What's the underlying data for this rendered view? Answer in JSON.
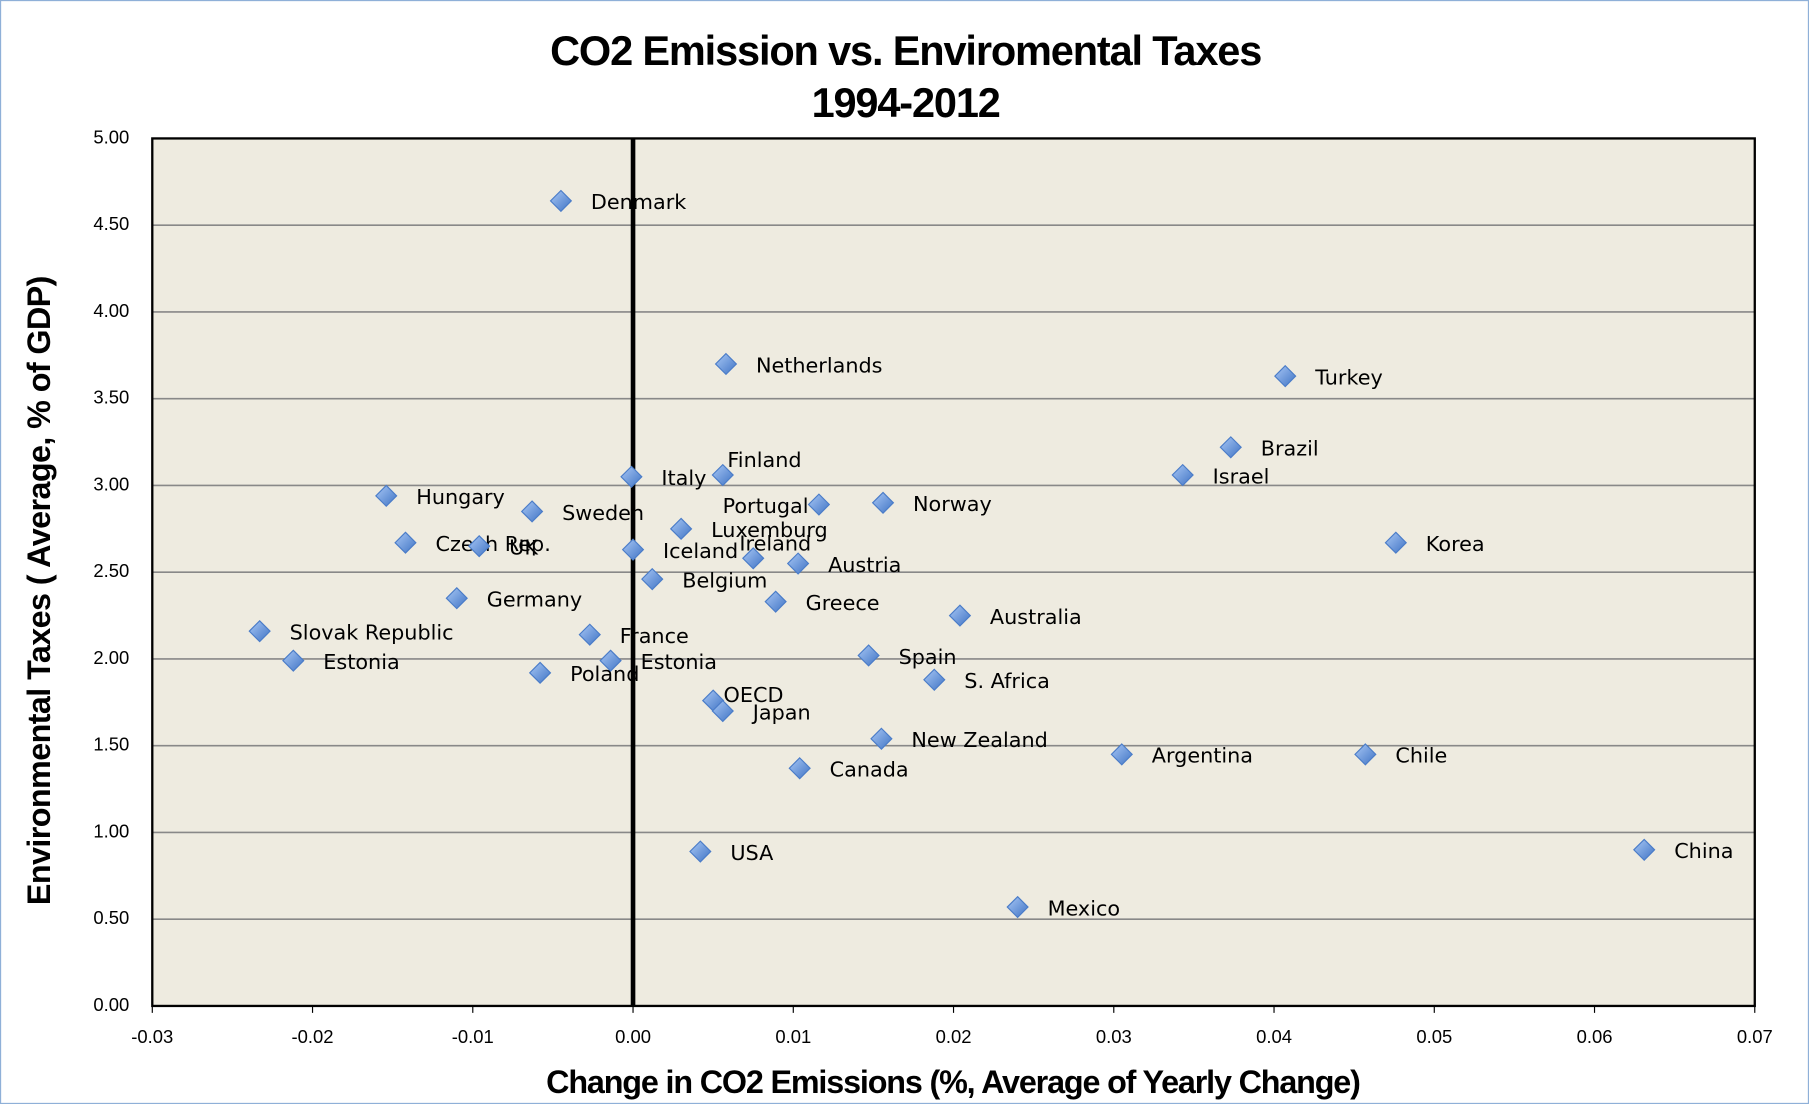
{
  "chart_data": {
    "type": "scatter",
    "title": "CO2 Emission vs. Enviromental Taxes",
    "subtitle": "1994-2012",
    "x_label": "Change in CO2 Emissions (%, Average of Yearly Change)",
    "y_label": "Environmental Taxes ( Average, % of GDP)",
    "point_labels": [
      "Denmark",
      "Netherlands",
      "Turkey",
      "Brazil",
      "Israel",
      "Italy",
      "Finland",
      "Hungary",
      "Sweden",
      "Portugal",
      "Norway",
      "Luxemburg",
      "Czech Rep.",
      "UK",
      "Korea",
      "Iceland",
      "Ireland",
      "Austria",
      "Belgium",
      "Germany",
      "Greece",
      "Australia",
      "Slovak Republic",
      "France",
      "Estonia",
      "Estonia",
      "Spain",
      "Poland",
      "S. Africa",
      "OECD",
      "Japan",
      "New Zealand",
      "Argentina",
      "Chile",
      "Canada",
      "USA",
      "China",
      "Mexico"
    ],
    "x": [
      -0.0045,
      0.0058,
      0.0407,
      0.0373,
      0.0343,
      -0.0001,
      0.0056,
      -0.0154,
      -0.0063,
      0.0116,
      0.0156,
      0.003,
      -0.0142,
      -0.0096,
      0.0476,
      0.0,
      0.0075,
      0.0103,
      0.0012,
      -0.011,
      0.0089,
      0.0204,
      -0.0233,
      -0.0027,
      -0.0212,
      -0.0014,
      0.0147,
      -0.0058,
      0.0188,
      0.005,
      0.0056,
      0.0155,
      0.0305,
      0.0457,
      0.0104,
      0.0042,
      0.0631,
      0.024
    ],
    "values": [
      4.64,
      3.7,
      3.63,
      3.22,
      3.06,
      3.05,
      3.06,
      2.94,
      2.85,
      2.89,
      2.9,
      2.75,
      2.67,
      2.65,
      2.67,
      2.63,
      2.58,
      2.55,
      2.46,
      2.35,
      2.33,
      2.25,
      2.16,
      2.14,
      1.99,
      1.99,
      2.02,
      1.92,
      1.88,
      1.76,
      1.7,
      1.54,
      1.45,
      1.45,
      1.37,
      0.89,
      0.9,
      0.57
    ],
    "color": "#5b8fdb",
    "xlim": [
      -0.03,
      0.07
    ],
    "xticks": [
      -0.03,
      -0.02,
      -0.01,
      {
        "value": 0,
        "label": "0.00"
      },
      0.01,
      0.02,
      0.03,
      0.04,
      0.05,
      0.06,
      0.07
    ],
    "ylim": [
      0,
      5
    ],
    "yticks": [
      {
        "value": 0,
        "label": "0.00"
      },
      {
        "value": 0.5,
        "label": "0.50"
      },
      {
        "value": 1,
        "label": "1.00"
      },
      {
        "value": 1.5,
        "label": "1.50"
      },
      {
        "value": 2,
        "label": "2.00"
      },
      {
        "value": 2.5,
        "label": "2.50"
      },
      {
        "value": 3,
        "label": "3.00"
      },
      {
        "value": 3.5,
        "label": "3.50"
      },
      {
        "value": 4,
        "label": "4.00"
      },
      {
        "value": 4.5,
        "label": "4.50"
      },
      {
        "value": 5,
        "label": "5.00"
      }
    ],
    "grid": true
  }
}
